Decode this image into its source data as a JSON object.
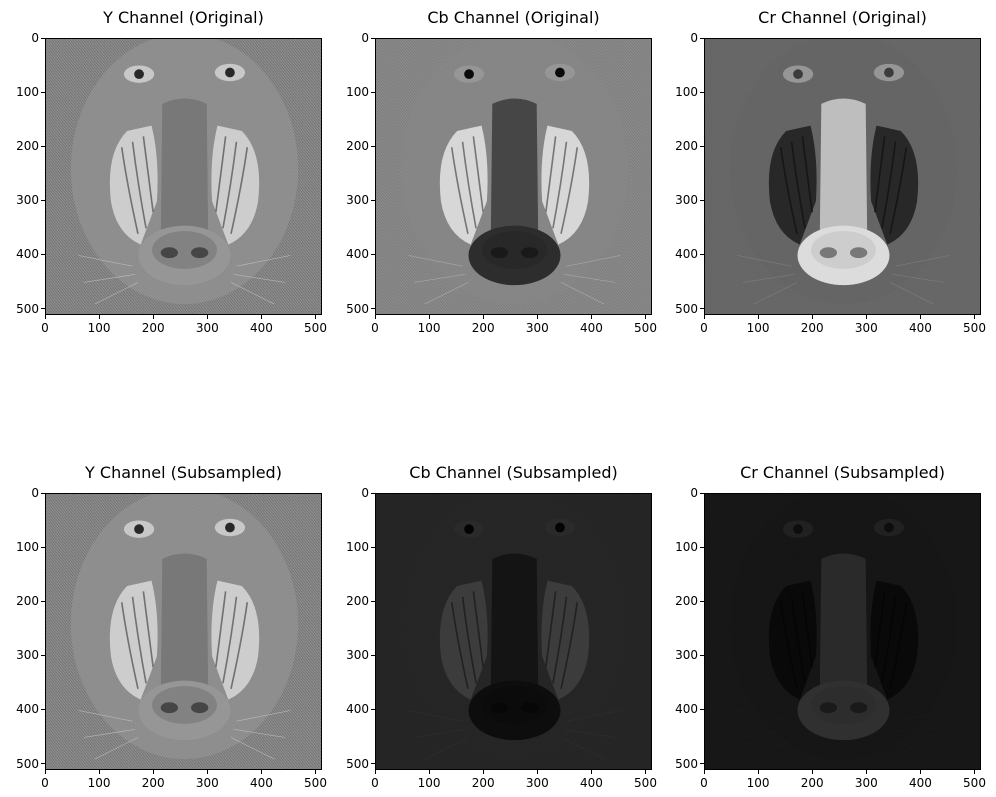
{
  "figure": {
    "panels": [
      {
        "title": "Y Channel (Original)",
        "variant": "y",
        "brightness": 1.0
      },
      {
        "title": "Cb Channel (Original)",
        "variant": "cb",
        "brightness": 1.0
      },
      {
        "title": "Cr Channel (Original)",
        "variant": "cr",
        "brightness": 1.0
      },
      {
        "title": "Y Channel (Subsampled)",
        "variant": "y",
        "brightness": 1.0
      },
      {
        "title": "Cb Channel (Subsampled)",
        "variant": "cb",
        "brightness": 0.28
      },
      {
        "title": "Cr Channel (Subsampled)",
        "variant": "cr",
        "brightness": 0.22
      }
    ],
    "x_ticks": [
      "0",
      "100",
      "200",
      "300",
      "400",
      "500"
    ],
    "y_ticks": [
      "0",
      "100",
      "200",
      "300",
      "400",
      "500"
    ],
    "axis_max": 512,
    "subject": "mandrill face"
  }
}
